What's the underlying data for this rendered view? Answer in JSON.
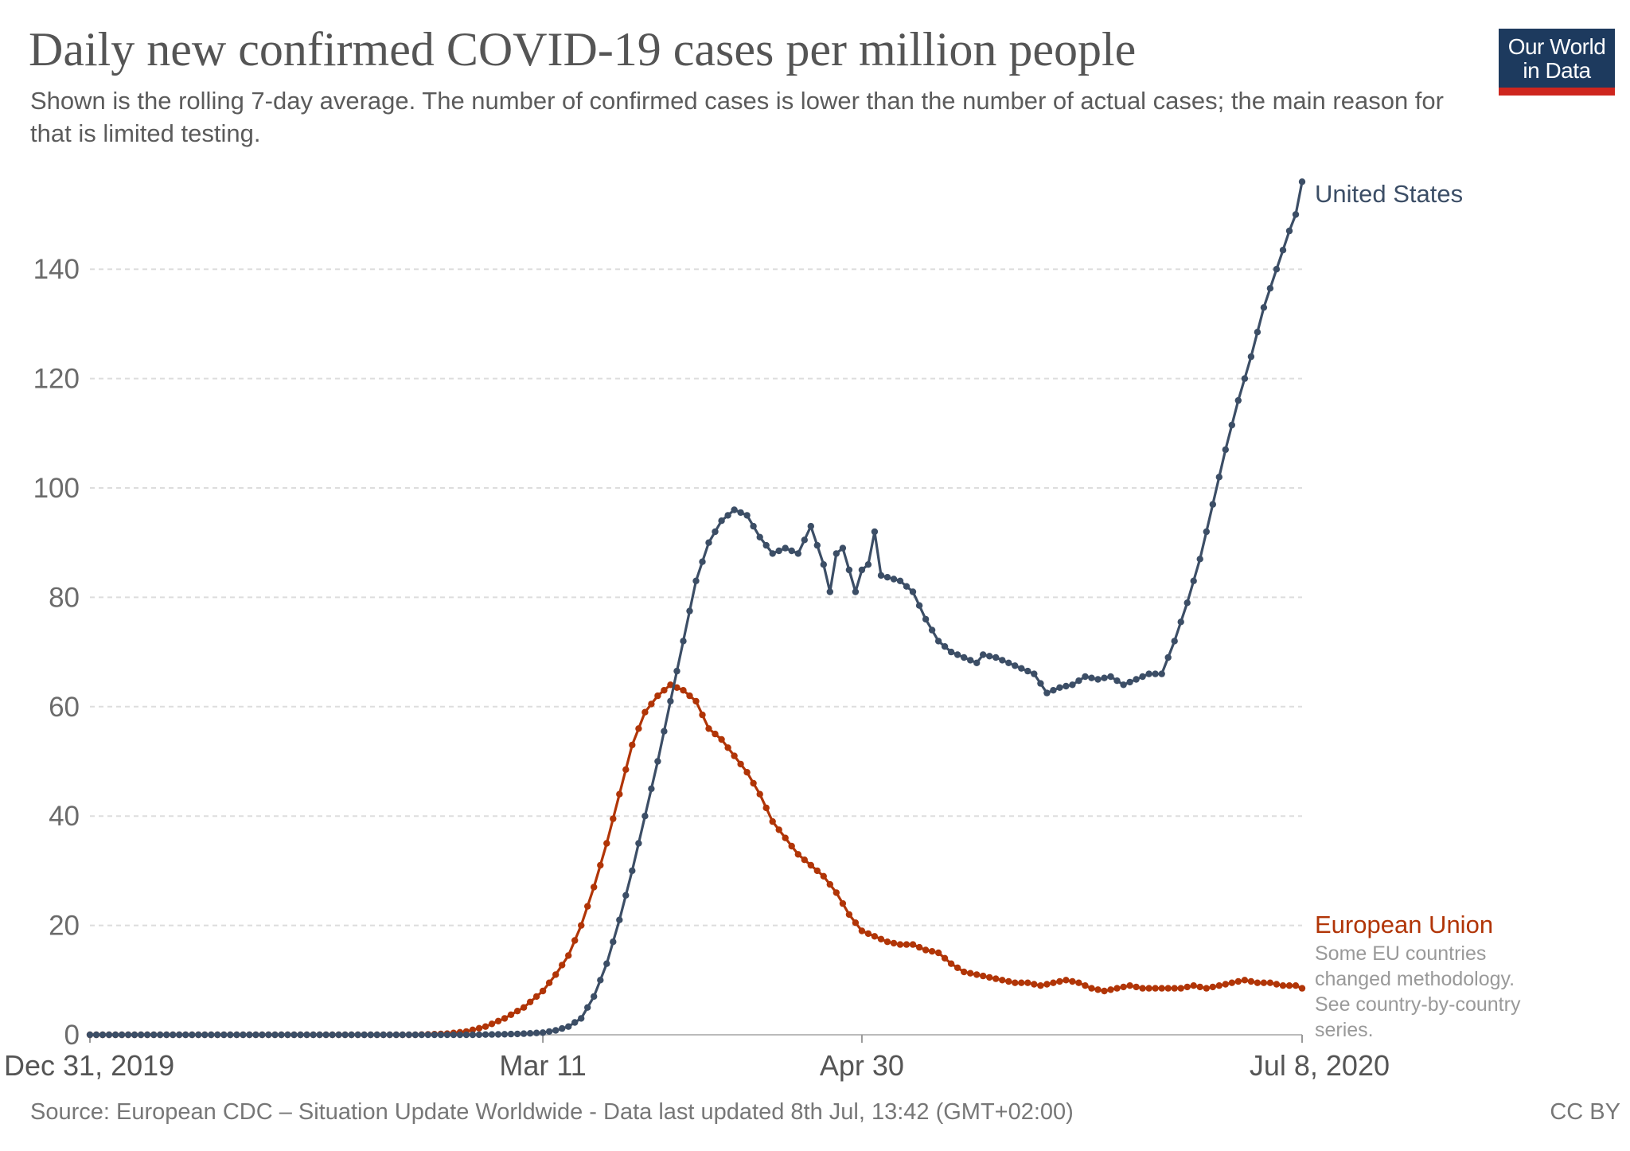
{
  "title": "Daily new confirmed COVID-19 cases per million people",
  "subtitle": "Shown is the rolling 7-day average. The number of confirmed cases is lower than the number of actual cases; the main reason for that is limited testing.",
  "logo": {
    "text": "Our World\nin Data",
    "colors": {
      "background": "#1d3a5e",
      "accent": "#ce261e"
    }
  },
  "source": "Source: European CDC – Situation Update Worldwide - Data last updated 8th Jul, 13:42 (GMT+02:00)",
  "license": "CC BY",
  "chart_data": {
    "type": "line",
    "title": "Daily new confirmed COVID-19 cases per million people",
    "xlabel": "",
    "ylabel": "",
    "x_start": "2019-12-31",
    "x_end": "2020-07-08",
    "ylim": [
      0,
      150
    ],
    "y_ticks": [
      0,
      20,
      40,
      60,
      80,
      100,
      120,
      140
    ],
    "x_tick_labels": [
      {
        "label": "Dec 31, 2019",
        "date": "2019-12-31"
      },
      {
        "label": "Mar 11",
        "date": "2020-03-11"
      },
      {
        "label": "Apr 30",
        "date": "2020-04-30"
      },
      {
        "label": "Jul 8, 2020",
        "date": "2020-07-08"
      }
    ],
    "grid": "horizontal dashed",
    "series": [
      {
        "name": "United States",
        "color": "#3c4e66",
        "points": [
          [
            "2019-12-31",
            0
          ],
          [
            "2020-01-31",
            0
          ],
          [
            "2020-02-29",
            0
          ],
          [
            "2020-03-05",
            0.1
          ],
          [
            "2020-03-08",
            0.2
          ],
          [
            "2020-03-11",
            0.4
          ],
          [
            "2020-03-13",
            0.8
          ],
          [
            "2020-03-15",
            1.5
          ],
          [
            "2020-03-17",
            3
          ],
          [
            "2020-03-19",
            7
          ],
          [
            "2020-03-21",
            13
          ],
          [
            "2020-03-23",
            21
          ],
          [
            "2020-03-25",
            30
          ],
          [
            "2020-03-27",
            40
          ],
          [
            "2020-03-29",
            50
          ],
          [
            "2020-03-31",
            61
          ],
          [
            "2020-04-02",
            72
          ],
          [
            "2020-04-04",
            83
          ],
          [
            "2020-04-06",
            90
          ],
          [
            "2020-04-08",
            94
          ],
          [
            "2020-04-10",
            96
          ],
          [
            "2020-04-12",
            95
          ],
          [
            "2020-04-14",
            91
          ],
          [
            "2020-04-16",
            88
          ],
          [
            "2020-04-18",
            89
          ],
          [
            "2020-04-20",
            88
          ],
          [
            "2020-04-22",
            93
          ],
          [
            "2020-04-24",
            86
          ],
          [
            "2020-04-25",
            81
          ],
          [
            "2020-04-26",
            88
          ],
          [
            "2020-04-27",
            89
          ],
          [
            "2020-04-29",
            81
          ],
          [
            "2020-04-30",
            85
          ],
          [
            "2020-05-01",
            86
          ],
          [
            "2020-05-02",
            92
          ],
          [
            "2020-05-03",
            84
          ],
          [
            "2020-05-06",
            83
          ],
          [
            "2020-05-08",
            81
          ],
          [
            "2020-05-10",
            76
          ],
          [
            "2020-05-12",
            72
          ],
          [
            "2020-05-14",
            70
          ],
          [
            "2020-05-16",
            69
          ],
          [
            "2020-05-18",
            68
          ],
          [
            "2020-05-19",
            69.5
          ],
          [
            "2020-05-21",
            69
          ],
          [
            "2020-05-23",
            68
          ],
          [
            "2020-05-25",
            67
          ],
          [
            "2020-05-27",
            66
          ],
          [
            "2020-05-29",
            62.5
          ],
          [
            "2020-05-31",
            63.5
          ],
          [
            "2020-06-02",
            64
          ],
          [
            "2020-06-04",
            65.5
          ],
          [
            "2020-06-06",
            65
          ],
          [
            "2020-06-08",
            65.5
          ],
          [
            "2020-06-10",
            64
          ],
          [
            "2020-06-12",
            65
          ],
          [
            "2020-06-14",
            66
          ],
          [
            "2020-06-16",
            66
          ],
          [
            "2020-06-18",
            72
          ],
          [
            "2020-06-20",
            79
          ],
          [
            "2020-06-22",
            87
          ],
          [
            "2020-06-24",
            97
          ],
          [
            "2020-06-26",
            107
          ],
          [
            "2020-06-28",
            116
          ],
          [
            "2020-06-30",
            124
          ],
          [
            "2020-07-02",
            133
          ],
          [
            "2020-07-04",
            140
          ],
          [
            "2020-07-06",
            147
          ],
          [
            "2020-07-07",
            150
          ],
          [
            "2020-07-08",
            156
          ]
        ]
      },
      {
        "name": "European Union",
        "color": "#b13507",
        "note": [
          "Some EU countries",
          "changed methodology.",
          "See country-by-country",
          "series."
        ],
        "points": [
          [
            "2019-12-31",
            0
          ],
          [
            "2020-01-31",
            0
          ],
          [
            "2020-02-20",
            0
          ],
          [
            "2020-02-25",
            0.2
          ],
          [
            "2020-02-28",
            0.6
          ],
          [
            "2020-03-02",
            1.5
          ],
          [
            "2020-03-05",
            3
          ],
          [
            "2020-03-08",
            5
          ],
          [
            "2020-03-11",
            8
          ],
          [
            "2020-03-13",
            11
          ],
          [
            "2020-03-15",
            14.5
          ],
          [
            "2020-03-17",
            20
          ],
          [
            "2020-03-19",
            27
          ],
          [
            "2020-03-21",
            35
          ],
          [
            "2020-03-23",
            44
          ],
          [
            "2020-03-25",
            53
          ],
          [
            "2020-03-27",
            59
          ],
          [
            "2020-03-29",
            62
          ],
          [
            "2020-03-31",
            64
          ],
          [
            "2020-04-02",
            63
          ],
          [
            "2020-04-04",
            61
          ],
          [
            "2020-04-06",
            56
          ],
          [
            "2020-04-08",
            54
          ],
          [
            "2020-04-10",
            51
          ],
          [
            "2020-04-12",
            48
          ],
          [
            "2020-04-14",
            44
          ],
          [
            "2020-04-16",
            39
          ],
          [
            "2020-04-18",
            36
          ],
          [
            "2020-04-20",
            33
          ],
          [
            "2020-04-22",
            31
          ],
          [
            "2020-04-24",
            29
          ],
          [
            "2020-04-26",
            26
          ],
          [
            "2020-04-28",
            22
          ],
          [
            "2020-04-30",
            19
          ],
          [
            "2020-05-02",
            18
          ],
          [
            "2020-05-04",
            17
          ],
          [
            "2020-05-06",
            16.5
          ],
          [
            "2020-05-08",
            16.5
          ],
          [
            "2020-05-10",
            15.5
          ],
          [
            "2020-05-12",
            15
          ],
          [
            "2020-05-14",
            13
          ],
          [
            "2020-05-16",
            11.5
          ],
          [
            "2020-05-18",
            11
          ],
          [
            "2020-05-20",
            10.5
          ],
          [
            "2020-05-22",
            10
          ],
          [
            "2020-05-24",
            9.5
          ],
          [
            "2020-05-26",
            9.5
          ],
          [
            "2020-05-28",
            9
          ],
          [
            "2020-05-30",
            9.5
          ],
          [
            "2020-06-01",
            10
          ],
          [
            "2020-06-03",
            9.5
          ],
          [
            "2020-06-05",
            8.5
          ],
          [
            "2020-06-07",
            8
          ],
          [
            "2020-06-09",
            8.5
          ],
          [
            "2020-06-11",
            9
          ],
          [
            "2020-06-13",
            8.5
          ],
          [
            "2020-06-15",
            8.5
          ],
          [
            "2020-06-17",
            8.5
          ],
          [
            "2020-06-19",
            8.5
          ],
          [
            "2020-06-21",
            9
          ],
          [
            "2020-06-23",
            8.5
          ],
          [
            "2020-06-25",
            9
          ],
          [
            "2020-06-27",
            9.5
          ],
          [
            "2020-06-29",
            10
          ],
          [
            "2020-07-01",
            9.5
          ],
          [
            "2020-07-03",
            9.5
          ],
          [
            "2020-07-05",
            9
          ],
          [
            "2020-07-07",
            9
          ],
          [
            "2020-07-08",
            8.5
          ]
        ]
      }
    ]
  }
}
